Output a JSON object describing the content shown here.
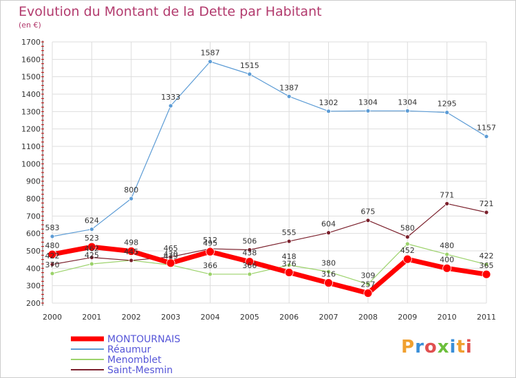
{
  "chart_data": {
    "type": "line",
    "title": "Evolution du Montant de la Dette par Habitant",
    "subtitle": "(en €)",
    "x": [
      "2000",
      "2001",
      "2002",
      "2003",
      "2004",
      "2005",
      "2006",
      "2007",
      "2008",
      "2009",
      "2010",
      "2011"
    ],
    "ylim": [
      200,
      1700
    ],
    "yticks": [
      200,
      300,
      400,
      500,
      600,
      700,
      800,
      900,
      1000,
      1100,
      1200,
      1300,
      1400,
      1500,
      1600,
      1700
    ],
    "grid": true,
    "legend_position": "bottom-left",
    "series": [
      {
        "name": "Réaumur",
        "color": "#5b9bd5",
        "values": [
          583,
          624,
          800,
          1333,
          1587,
          1515,
          1387,
          1302,
          1304,
          1304,
          1295,
          1157
        ],
        "labels": [
          "583",
          "624",
          "800",
          "1333",
          "1587",
          "1515",
          "1387",
          "1302",
          "1304",
          "1304",
          "1295",
          "1157"
        ]
      },
      {
        "name": "Menomblet",
        "color": "#9bd26a",
        "values": [
          370,
          425,
          445,
          419,
          366,
          366,
          418,
          380,
          309,
          540,
          480,
          422
        ],
        "labels": [
          "370",
          "425",
          "445",
          "419",
          "366",
          "366",
          "418",
          "380",
          "309",
          "",
          "480",
          "422"
        ]
      },
      {
        "name": "Saint-Mesmin",
        "color": "#7a1f2b",
        "values": [
          422,
          462,
          445,
          465,
          512,
          506,
          555,
          604,
          675,
          580,
          771,
          721
        ],
        "labels": [
          "422",
          "462",
          "445",
          "465",
          "512",
          "506",
          "555",
          "604",
          "675",
          "580",
          "771",
          "721"
        ]
      },
      {
        "name": "MONTOURNAIS",
        "color": "#ff0000",
        "values": [
          480,
          523,
          498,
          430,
          495,
          438,
          376,
          316,
          257,
          452,
          400,
          365
        ],
        "labels": [
          "480",
          "523",
          "498",
          "430",
          "495",
          "438",
          "376",
          "316",
          "257",
          "452",
          "400",
          "365"
        ]
      }
    ]
  },
  "logo": {
    "text": "Proxiti"
  }
}
